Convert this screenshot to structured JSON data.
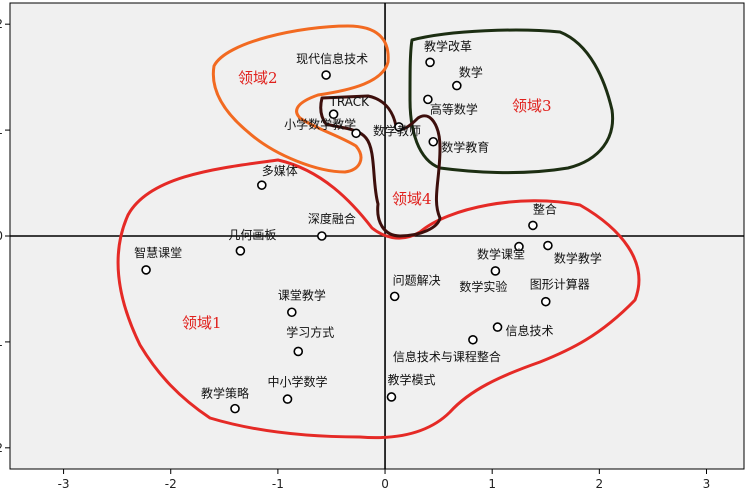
{
  "chart_data": {
    "type": "scatter",
    "title": "",
    "xlabel": "",
    "ylabel": "",
    "xlim": [
      -3.5,
      3.35
    ],
    "ylim": [
      -2.2,
      2.2
    ],
    "xticks": [
      -3,
      -2,
      -1,
      0,
      1,
      2,
      3
    ],
    "yticks": [
      2,
      1,
      0,
      -1,
      -2
    ],
    "grid": false,
    "reference_lines": {
      "x": 0,
      "y": 0
    },
    "points": [
      {
        "label": "现代信息技术",
        "x": -0.55,
        "y": 1.52
      },
      {
        "label": "TRACK",
        "x": -0.48,
        "y": 1.15
      },
      {
        "label": "小学数学教学",
        "x": -0.27,
        "y": 0.97
      },
      {
        "label": "数学教师",
        "x": 0.13,
        "y": 1.03
      },
      {
        "label": "数学教育",
        "x": 0.45,
        "y": 0.89
      },
      {
        "label": "教学改革",
        "x": 0.42,
        "y": 1.64
      },
      {
        "label": "数学",
        "x": 0.67,
        "y": 1.42
      },
      {
        "label": "高等数学",
        "x": 0.4,
        "y": 1.29
      },
      {
        "label": "多媒体",
        "x": -1.15,
        "y": 0.48
      },
      {
        "label": "深度融合",
        "x": -0.59,
        "y": 0.0
      },
      {
        "label": "几何画板",
        "x": -1.35,
        "y": -0.14
      },
      {
        "label": "智慧课堂",
        "x": -2.23,
        "y": -0.32
      },
      {
        "label": "整合",
        "x": 1.38,
        "y": 0.1
      },
      {
        "label": "数学课堂",
        "x": 1.25,
        "y": -0.1
      },
      {
        "label": "数学教学",
        "x": 1.52,
        "y": -0.09
      },
      {
        "label": "数学实验",
        "x": 1.03,
        "y": -0.33
      },
      {
        "label": "问题解决",
        "x": 0.09,
        "y": -0.57
      },
      {
        "label": "图形计算器",
        "x": 1.5,
        "y": -0.62
      },
      {
        "label": "课堂教学",
        "x": -0.87,
        "y": -0.72
      },
      {
        "label": "信息技术",
        "x": 1.05,
        "y": -0.86
      },
      {
        "label": "信息技术与课程整合",
        "x": 0.82,
        "y": -0.98
      },
      {
        "label": "学习方式",
        "x": -0.81,
        "y": -1.09
      },
      {
        "label": "中小学数学",
        "x": -0.91,
        "y": -1.54
      },
      {
        "label": "教学模式",
        "x": 0.06,
        "y": -1.52
      },
      {
        "label": "教学策略",
        "x": -1.4,
        "y": -1.63
      }
    ],
    "regions": [
      {
        "label": "领域1",
        "color": "#e52a26"
      },
      {
        "label": "领域2",
        "color": "#f26a21"
      },
      {
        "label": "领域3",
        "color": "#1c2e12"
      },
      {
        "label": "领域4",
        "color": "#3d0f0c"
      }
    ]
  }
}
